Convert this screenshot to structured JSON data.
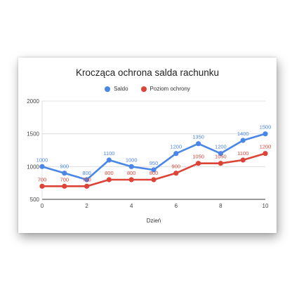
{
  "chart_data": {
    "type": "line",
    "title": "Krocząca ochrona salda rachunku",
    "xlabel": "Dzień",
    "ylabel": "",
    "x": [
      0,
      1,
      2,
      3,
      4,
      5,
      6,
      7,
      8,
      9,
      10
    ],
    "xlim": [
      0,
      10
    ],
    "ylim": [
      500,
      2000
    ],
    "x_ticks": [
      0,
      2,
      4,
      6,
      8,
      10
    ],
    "y_ticks": [
      500,
      1000,
      1500,
      2000
    ],
    "grid": "horizontal",
    "legend": "top-center",
    "series": [
      {
        "name": "Saldo",
        "color": "#4a86e8",
        "values": [
          1000,
          900,
          800,
          1100,
          1000,
          950,
          1200,
          1350,
          1200,
          1400,
          1500
        ]
      },
      {
        "name": "Poziom ochrony",
        "color": "#db4437",
        "values": [
          700,
          700,
          700,
          800,
          800,
          800,
          900,
          1050,
          1050,
          1100,
          1200
        ]
      }
    ]
  }
}
